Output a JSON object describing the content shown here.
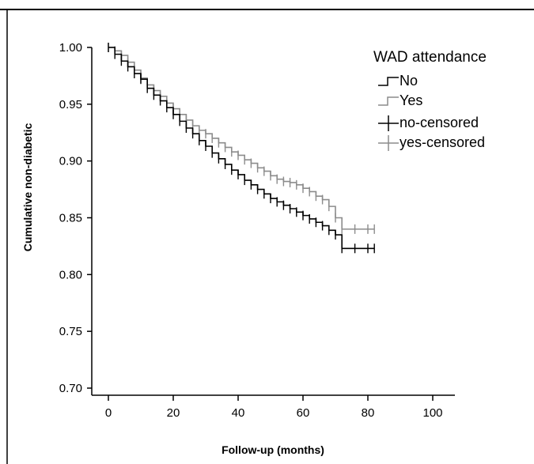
{
  "chart_data": {
    "type": "line",
    "subtype": "kaplan-meier-step",
    "title": "",
    "xlabel": "Follow-up (months)",
    "ylabel": "Cumulative non-diabetic",
    "xlim": [
      0,
      100
    ],
    "ylim": [
      0.7,
      1.0
    ],
    "x_ticks": [
      0,
      20,
      40,
      60,
      80,
      100
    ],
    "y_ticks": [
      0.7,
      0.75,
      0.8,
      0.85,
      0.9,
      0.95,
      1.0
    ],
    "y_tick_labels": [
      "0.70",
      "0.75",
      "0.80",
      "0.85",
      "0.90",
      "0.95",
      "1.00"
    ],
    "grid": false,
    "legend": {
      "title": "WAD attendance",
      "placement": "top-right",
      "entries": [
        "No",
        "Yes",
        "no-censored",
        "yes-censored"
      ]
    },
    "series": [
      {
        "name": "No",
        "color": "#000000",
        "x": [
          0,
          2,
          4,
          6,
          8,
          10,
          12,
          14,
          16,
          18,
          20,
          22,
          24,
          26,
          28,
          30,
          32,
          34,
          36,
          38,
          40,
          42,
          44,
          46,
          48,
          50,
          52,
          54,
          56,
          58,
          60,
          62,
          64,
          66,
          68,
          70,
          72,
          76,
          80,
          82
        ],
        "y": [
          1.0,
          0.994,
          0.988,
          0.983,
          0.977,
          0.972,
          0.964,
          0.958,
          0.953,
          0.947,
          0.941,
          0.935,
          0.929,
          0.924,
          0.918,
          0.913,
          0.907,
          0.902,
          0.897,
          0.892,
          0.888,
          0.883,
          0.879,
          0.875,
          0.871,
          0.867,
          0.864,
          0.861,
          0.858,
          0.855,
          0.852,
          0.849,
          0.846,
          0.843,
          0.839,
          0.835,
          0.823,
          0.823,
          0.823,
          0.823
        ]
      },
      {
        "name": "Yes",
        "color": "#8c8c8c",
        "x": [
          0,
          2,
          4,
          6,
          8,
          10,
          12,
          14,
          16,
          18,
          20,
          22,
          24,
          26,
          28,
          30,
          32,
          34,
          36,
          38,
          40,
          42,
          44,
          46,
          48,
          50,
          52,
          54,
          56,
          58,
          60,
          62,
          64,
          66,
          68,
          70,
          72,
          76,
          80,
          82
        ],
        "y": [
          1.0,
          0.997,
          0.993,
          0.987,
          0.98,
          0.973,
          0.967,
          0.962,
          0.957,
          0.951,
          0.946,
          0.941,
          0.936,
          0.931,
          0.927,
          0.924,
          0.92,
          0.916,
          0.912,
          0.908,
          0.905,
          0.901,
          0.898,
          0.894,
          0.891,
          0.887,
          0.884,
          0.882,
          0.881,
          0.879,
          0.876,
          0.873,
          0.869,
          0.866,
          0.86,
          0.85,
          0.84,
          0.84,
          0.84,
          0.84
        ]
      }
    ]
  }
}
